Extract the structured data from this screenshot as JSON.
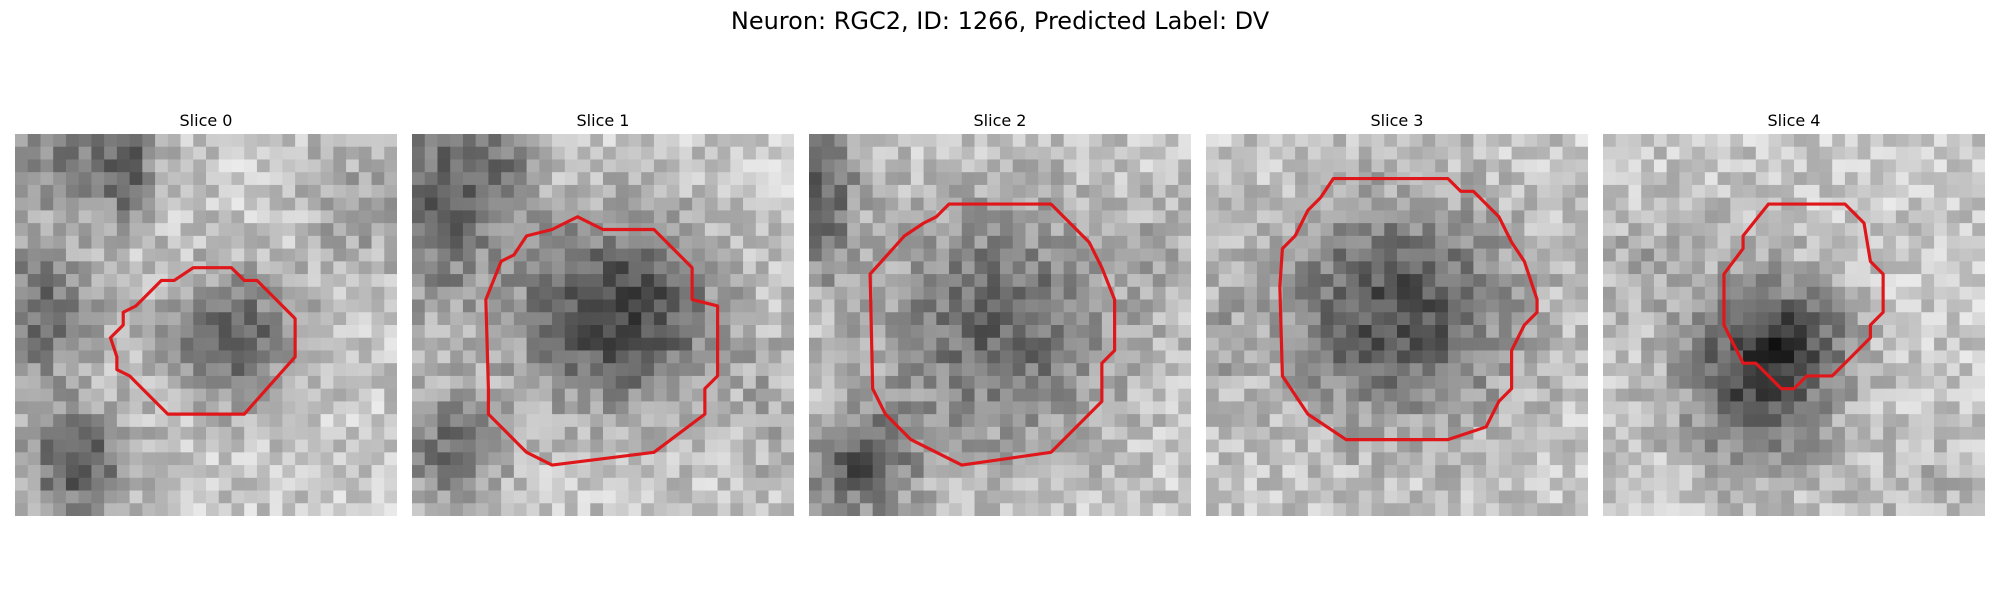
{
  "figure": {
    "title": "Neuron: RGC2, ID: 1266, Predicted Label: DV"
  },
  "panels": [
    {
      "title": "Slice 0"
    },
    {
      "title": "Slice 1"
    },
    {
      "title": "Slice 2"
    },
    {
      "title": "Slice 3"
    },
    {
      "title": "Slice 4"
    }
  ],
  "colors": {
    "contour": "#e0171a",
    "background": "#ffffff"
  }
}
